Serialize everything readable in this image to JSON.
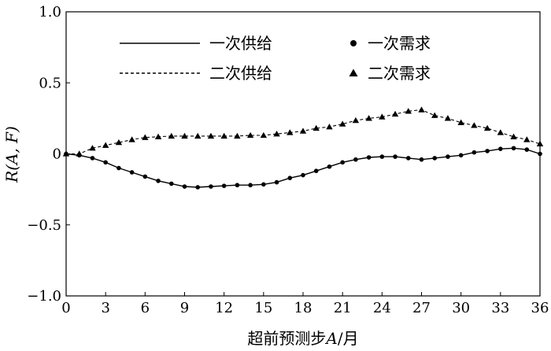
{
  "chart_data": {
    "type": "line",
    "title": "",
    "xlabel": "超前预测步A/月",
    "ylabel": "R(A, F)",
    "xlim": [
      0,
      36
    ],
    "ylim": [
      -1.0,
      1.0
    ],
    "xticks": [
      0,
      3,
      6,
      9,
      12,
      15,
      18,
      21,
      24,
      27,
      30,
      33,
      36
    ],
    "yticks": [
      1.0,
      0.5,
      0,
      -0.5,
      -1.0
    ],
    "ytick_labels": [
      "1.0",
      "0.5",
      "0",
      "−0.5",
      "−1.0"
    ],
    "grid": false,
    "legend_position": "top-left",
    "x": [
      0,
      1,
      2,
      3,
      4,
      5,
      6,
      7,
      8,
      9,
      10,
      11,
      12,
      13,
      14,
      15,
      16,
      17,
      18,
      19,
      20,
      21,
      22,
      23,
      24,
      25,
      26,
      27,
      28,
      29,
      30,
      31,
      32,
      33,
      34,
      35,
      36
    ],
    "series": [
      {
        "name": "一次供给",
        "style": "solid-line",
        "values": [
          0,
          -0.01,
          -0.03,
          -0.06,
          -0.1,
          -0.13,
          -0.16,
          -0.19,
          -0.21,
          -0.23,
          -0.235,
          -0.23,
          -0.225,
          -0.22,
          -0.22,
          -0.215,
          -0.2,
          -0.17,
          -0.15,
          -0.12,
          -0.09,
          -0.06,
          -0.04,
          -0.025,
          -0.02,
          -0.02,
          -0.03,
          -0.04,
          -0.03,
          -0.02,
          -0.01,
          0.01,
          0.02,
          0.035,
          0.04,
          0.03,
          0.0
        ]
      },
      {
        "name": "二次供给",
        "style": "dashed-line",
        "values": [
          0,
          0.0,
          0.04,
          0.06,
          0.08,
          0.1,
          0.115,
          0.12,
          0.125,
          0.125,
          0.125,
          0.125,
          0.125,
          0.125,
          0.13,
          0.13,
          0.14,
          0.15,
          0.16,
          0.18,
          0.19,
          0.21,
          0.235,
          0.25,
          0.26,
          0.28,
          0.3,
          0.31,
          0.27,
          0.25,
          0.22,
          0.2,
          0.18,
          0.15,
          0.12,
          0.1,
          0.07
        ]
      },
      {
        "name": "一次需求",
        "style": "circle-markers",
        "values": [
          0,
          -0.01,
          -0.03,
          -0.06,
          -0.1,
          -0.13,
          -0.16,
          -0.19,
          -0.21,
          -0.23,
          -0.235,
          -0.23,
          -0.225,
          -0.22,
          -0.22,
          -0.215,
          -0.2,
          -0.17,
          -0.15,
          -0.12,
          -0.09,
          -0.06,
          -0.04,
          -0.025,
          -0.02,
          -0.02,
          -0.03,
          -0.04,
          -0.03,
          -0.02,
          -0.01,
          0.01,
          0.02,
          0.035,
          0.04,
          0.03,
          0.0
        ]
      },
      {
        "name": "二次需求",
        "style": "triangle-markers",
        "values": [
          0,
          0.0,
          0.04,
          0.06,
          0.08,
          0.1,
          0.115,
          0.12,
          0.125,
          0.125,
          0.125,
          0.125,
          0.125,
          0.125,
          0.13,
          0.13,
          0.14,
          0.15,
          0.16,
          0.18,
          0.19,
          0.21,
          0.235,
          0.25,
          0.26,
          0.28,
          0.3,
          0.31,
          0.27,
          0.25,
          0.22,
          0.2,
          0.18,
          0.15,
          0.12,
          0.1,
          0.07
        ]
      }
    ]
  }
}
